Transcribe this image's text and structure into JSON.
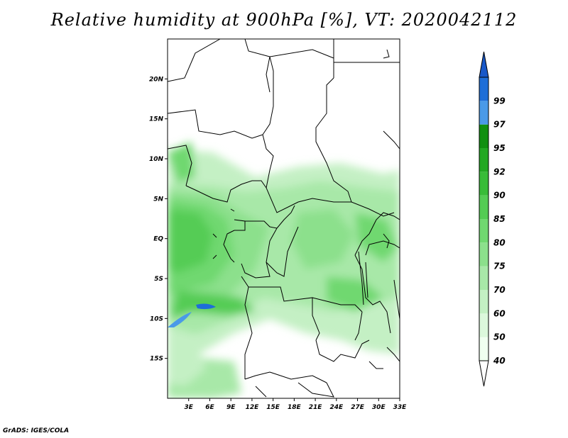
{
  "title": "Relative humidity at 900hPa [%], VT: 2020042112",
  "credit": "GrADS: IGES/COLA",
  "map": {
    "lon_range": [
      0,
      33
    ],
    "lat_range": [
      -20,
      25
    ],
    "lat_ticks": [
      {
        "lat": 20,
        "label": "20N"
      },
      {
        "lat": 15,
        "label": "15N"
      },
      {
        "lat": 10,
        "label": "10N"
      },
      {
        "lat": 5,
        "label": "5N"
      },
      {
        "lat": 0,
        "label": "EQ"
      },
      {
        "lat": -5,
        "label": "5S"
      },
      {
        "lat": -10,
        "label": "10S"
      },
      {
        "lat": -15,
        "label": "15S"
      }
    ],
    "lon_ticks": [
      {
        "lon": 3,
        "label": "3E"
      },
      {
        "lon": 6,
        "label": "6E"
      },
      {
        "lon": 9,
        "label": "9E"
      },
      {
        "lon": 12,
        "label": "12E"
      },
      {
        "lon": 15,
        "label": "15E"
      },
      {
        "lon": 18,
        "label": "18E"
      },
      {
        "lon": 21,
        "label": "21E"
      },
      {
        "lon": 24,
        "label": "24E"
      },
      {
        "lon": 27,
        "label": "27E"
      },
      {
        "lon": 30,
        "label": "30E"
      },
      {
        "lon": 33,
        "label": "33E"
      }
    ]
  },
  "colorbar": {
    "levels": [
      {
        "label": "40",
        "color": "#f0fff0"
      },
      {
        "label": "50",
        "color": "#dcf8dc"
      },
      {
        "label": "60",
        "color": "#c4f0c4"
      },
      {
        "label": "70",
        "color": "#a8e8a8"
      },
      {
        "label": "75",
        "color": "#8ce08c"
      },
      {
        "label": "80",
        "color": "#70d870"
      },
      {
        "label": "85",
        "color": "#54cc54"
      },
      {
        "label": "90",
        "color": "#38bc38"
      },
      {
        "label": "92",
        "color": "#22a822"
      },
      {
        "label": "95",
        "color": "#109010"
      },
      {
        "label": "97",
        "color": "#4a9ae8"
      },
      {
        "label": "99",
        "color": "#1e6ed8"
      }
    ],
    "under_color": "#ffffff",
    "over_color": "#1858c8"
  }
}
